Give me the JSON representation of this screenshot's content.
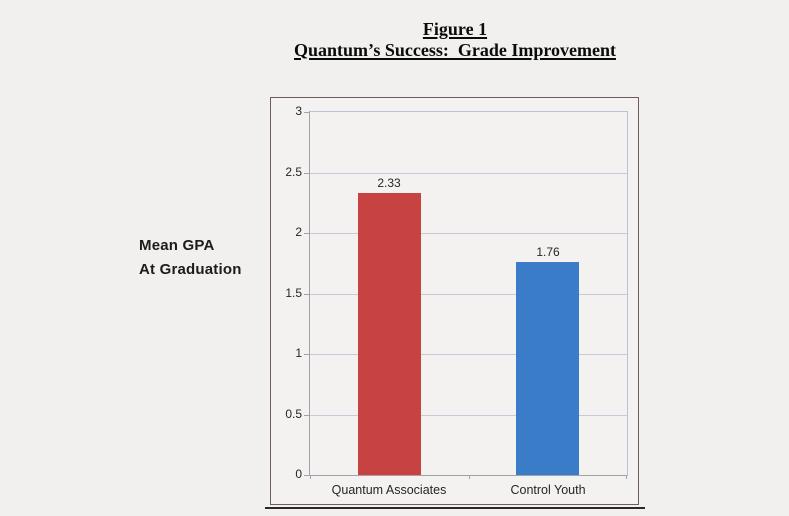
{
  "page": {
    "background": "#f1f0ef"
  },
  "title": {
    "line1": "Figure 1",
    "line2": "Quantum’s Success:  Grade Improvement"
  },
  "y_axis_label": {
    "line1": "Mean GPA",
    "line2": "At Graduation"
  },
  "chart_data": {
    "type": "bar",
    "title": "Figure 1 — Quantum’s Success: Grade Improvement",
    "categories": [
      "Quantum Associates",
      "Control Youth"
    ],
    "values": [
      2.33,
      1.76
    ],
    "data_labels": [
      "2.33",
      "1.76"
    ],
    "bar_colors": [
      "#c64341",
      "#3b7cc9"
    ],
    "ylabel": "Mean GPA At Graduation",
    "xlabel": "",
    "ylim": [
      0,
      3
    ],
    "yticks": [
      3,
      2.5,
      2,
      1.5,
      1,
      0.5,
      0
    ],
    "ytick_labels": [
      "3",
      "2.5",
      "2",
      "1.5",
      "1",
      "0.5",
      "0"
    ],
    "grid": true,
    "legend_position": "none"
  },
  "colors": {
    "bar_red": "#c64341",
    "bar_blue": "#3b7cc9",
    "gridline": "#c5ccd8",
    "plot_border": "#b9c3d7",
    "axis": "#a2a2a8",
    "frame_border": "#6e5c60",
    "text": "#262626"
  }
}
